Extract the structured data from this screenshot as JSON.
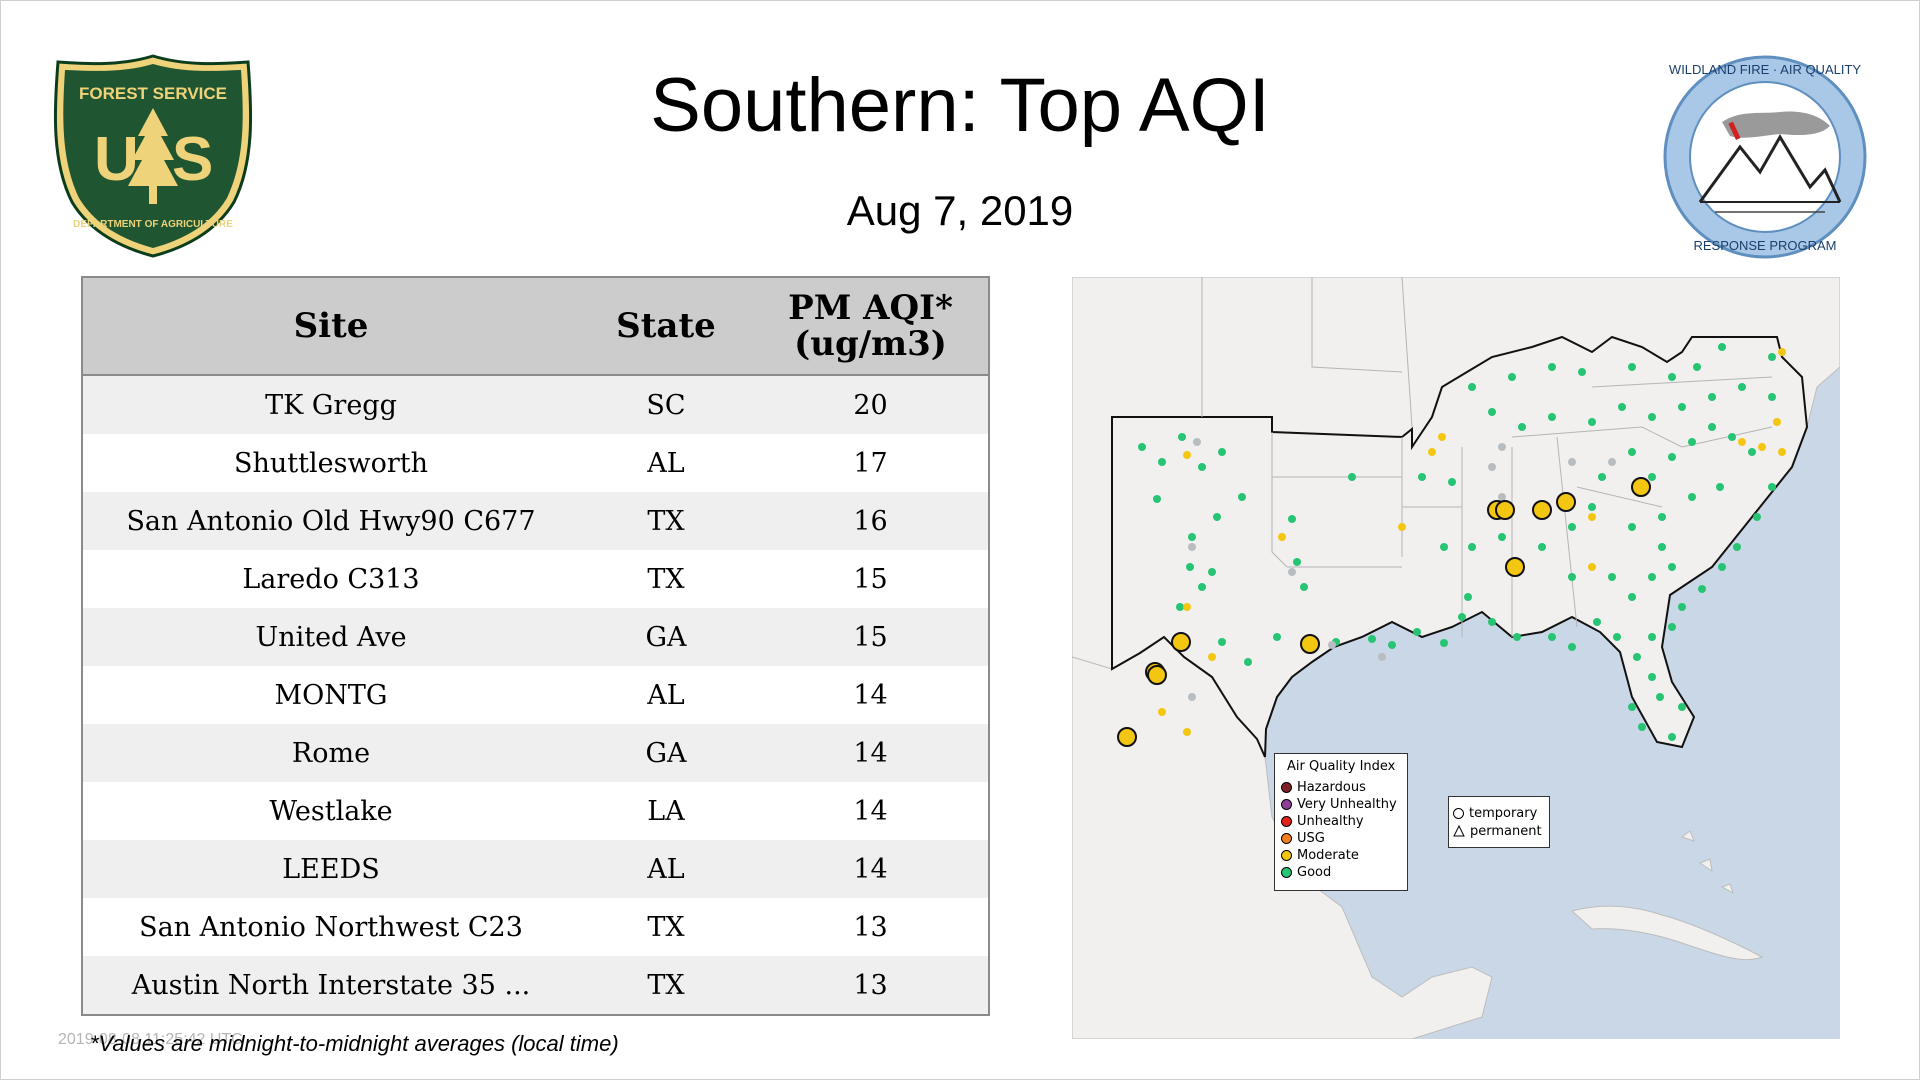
{
  "header": {
    "title": "Southern: Top AQI",
    "date": "Aug  7, 2019"
  },
  "logos": {
    "forest_service": {
      "top_text": "FOREST SERVICE",
      "letters": "U S",
      "bottom_text": "DEPARTMENT OF AGRICULTURE"
    },
    "wildland": {
      "top_text": "WILDLAND FIRE · AIR QUALITY",
      "bottom_text": "RESPONSE PROGRAM"
    }
  },
  "table": {
    "headers": {
      "site": "Site",
      "state": "State",
      "aqi_line1": "PM AQI*",
      "aqi_line2": "(ug/m3)"
    },
    "rows": [
      {
        "site": "TK Gregg",
        "state": "SC",
        "value": "20"
      },
      {
        "site": "Shuttlesworth",
        "state": "AL",
        "value": "17"
      },
      {
        "site": "San Antonio Old Hwy90 C677",
        "state": "TX",
        "value": "16"
      },
      {
        "site": "Laredo C313",
        "state": "TX",
        "value": "15"
      },
      {
        "site": "United Ave",
        "state": "GA",
        "value": "15"
      },
      {
        "site": "MONTG",
        "state": "AL",
        "value": "14"
      },
      {
        "site": "Rome",
        "state": "GA",
        "value": "14"
      },
      {
        "site": "Westlake",
        "state": "LA",
        "value": "14"
      },
      {
        "site": "LEEDS",
        "state": "AL",
        "value": "14"
      },
      {
        "site": "San Antonio Northwest C23",
        "state": "TX",
        "value": "13"
      },
      {
        "site": "Austin North Interstate 35 ...",
        "state": "TX",
        "value": "13"
      }
    ]
  },
  "footnote": "*Values are midnight-to-midnight averages (local time)",
  "timestamp": "2019-08-08 11:25:42 UTC",
  "map": {
    "legend_title": "Air Quality Index",
    "legend_items": [
      {
        "label": "Hazardous",
        "color": "#7e2129"
      },
      {
        "label": "Very Unhealthy",
        "color": "#8f3f97"
      },
      {
        "label": "Unhealthy",
        "color": "#e2231a"
      },
      {
        "label": "USG",
        "color": "#f47e20"
      },
      {
        "label": "Moderate",
        "color": "#f3c612"
      },
      {
        "label": "Good",
        "color": "#27c474"
      }
    ],
    "type_items": [
      {
        "label": "temporary"
      },
      {
        "label": "permanent"
      }
    ]
  },
  "colors": {
    "ocean": "#c9d7e6",
    "land": "#f1f0ef",
    "good": "#27c474",
    "moderate": "#f3c612",
    "nodata": "#b8bdc2"
  }
}
